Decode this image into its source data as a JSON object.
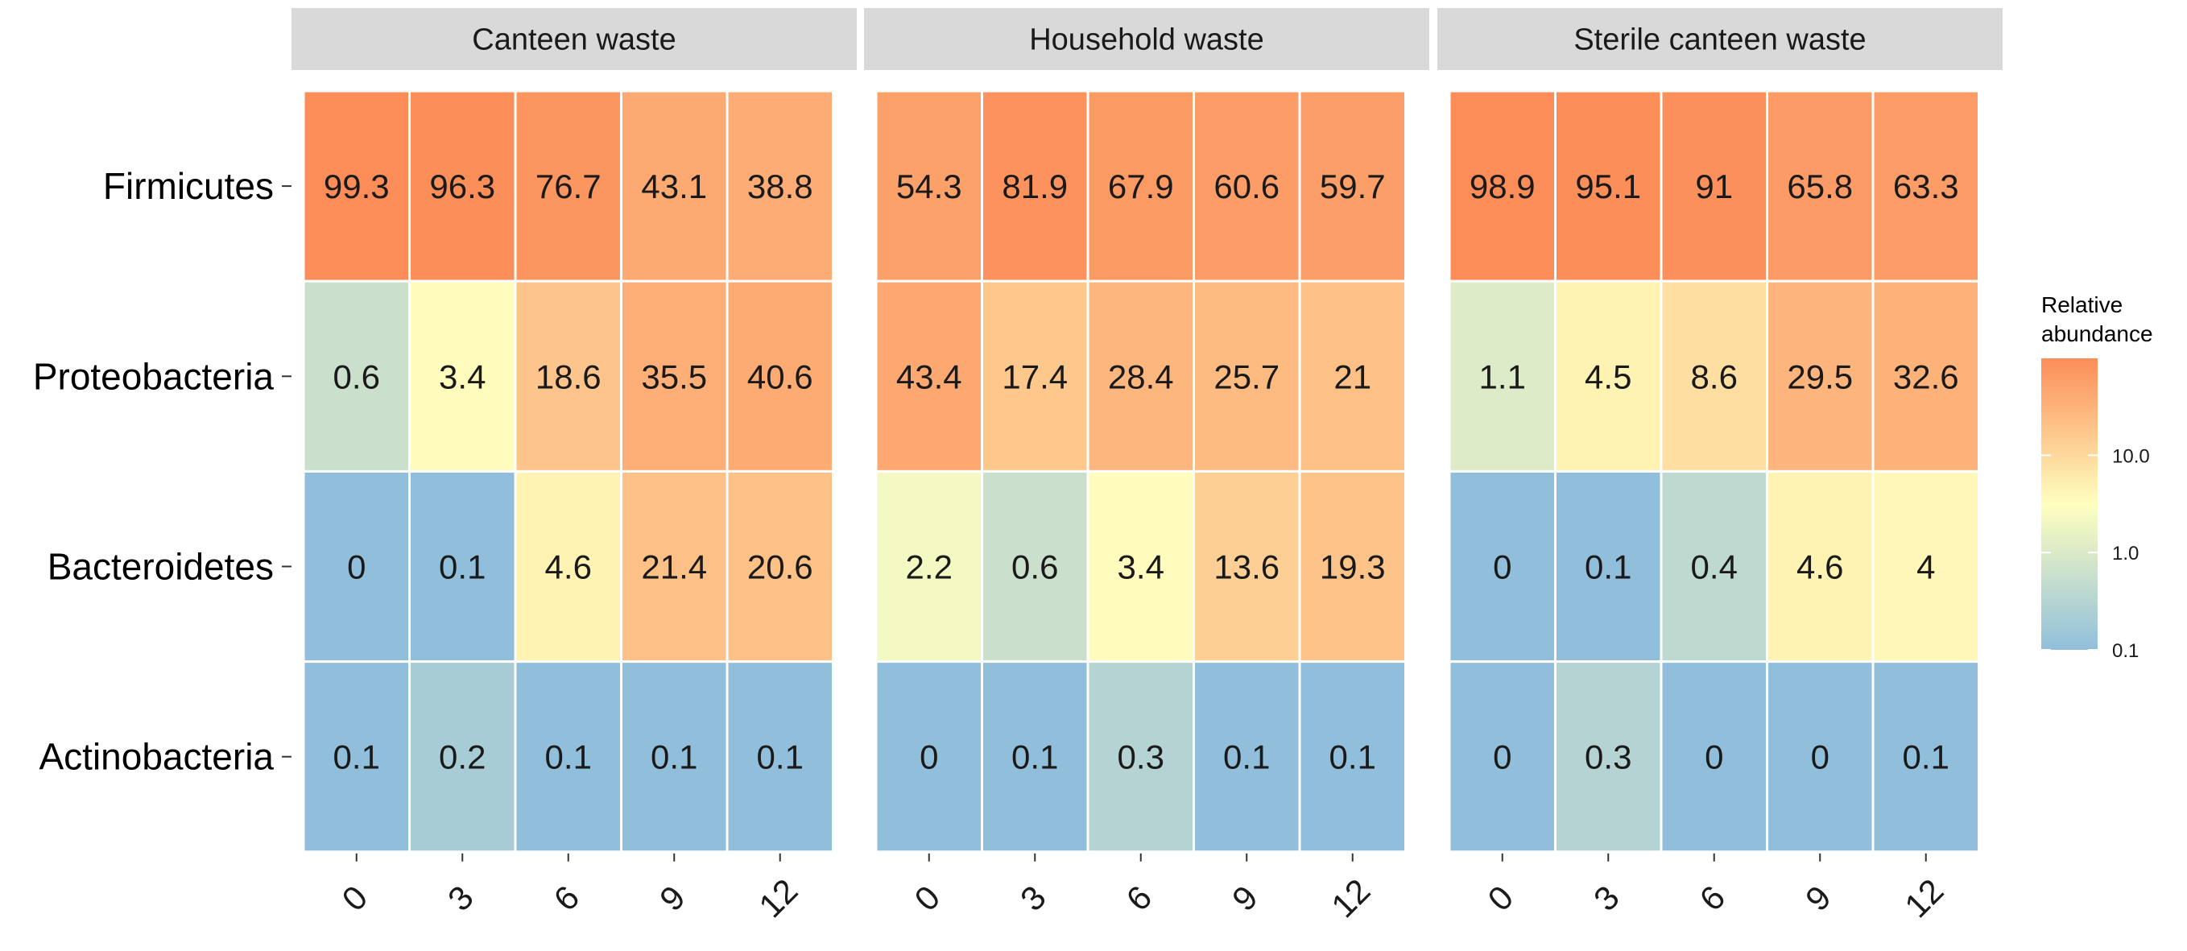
{
  "chart_data": {
    "type": "heatmap",
    "rows": [
      "Firmicutes",
      "Proteobacteria",
      "Bacteroidetes",
      "Actinobacteria"
    ],
    "columns": [
      "0",
      "3",
      "6",
      "9",
      "12"
    ],
    "panels": [
      {
        "name": "Canteen waste",
        "values": [
          [
            "99.3",
            "96.3",
            "76.7",
            "43.1",
            "38.8"
          ],
          [
            "0.6",
            "3.4",
            "18.6",
            "35.5",
            "40.6"
          ],
          [
            "0",
            "0.1",
            "4.6",
            "21.4",
            "20.6"
          ],
          [
            "0.1",
            "0.2",
            "0.1",
            "0.1",
            "0.1"
          ]
        ]
      },
      {
        "name": "Household waste",
        "values": [
          [
            "54.3",
            "81.9",
            "67.9",
            "60.6",
            "59.7"
          ],
          [
            "43.4",
            "17.4",
            "28.4",
            "25.7",
            "21"
          ],
          [
            "2.2",
            "0.6",
            "3.4",
            "13.6",
            "19.3"
          ],
          [
            "0",
            "0.1",
            "0.3",
            "0.1",
            "0.1"
          ]
        ]
      },
      {
        "name": "Sterile canteen waste",
        "values": [
          [
            "98.9",
            "95.1",
            "91",
            "65.8",
            "63.3"
          ],
          [
            "1.1",
            "4.5",
            "8.6",
            "29.5",
            "32.6"
          ],
          [
            "0",
            "0.1",
            "0.4",
            "4.6",
            "4"
          ],
          [
            "0",
            "0.3",
            "0",
            "0",
            "0.1"
          ]
        ]
      }
    ],
    "legend": {
      "title_lines": [
        "Relative",
        "abundance"
      ],
      "scale": "log10",
      "ticks": [
        "10.0",
        "1.0",
        "0.1"
      ],
      "range": [
        0.1,
        99.3
      ],
      "position": "right"
    },
    "colors": {
      "low": "#91bfdb",
      "mid": "#ffffbf",
      "high": "#fc8d59",
      "strip_bg": "#d9d9d9",
      "cell_border": "#ffffff"
    }
  }
}
